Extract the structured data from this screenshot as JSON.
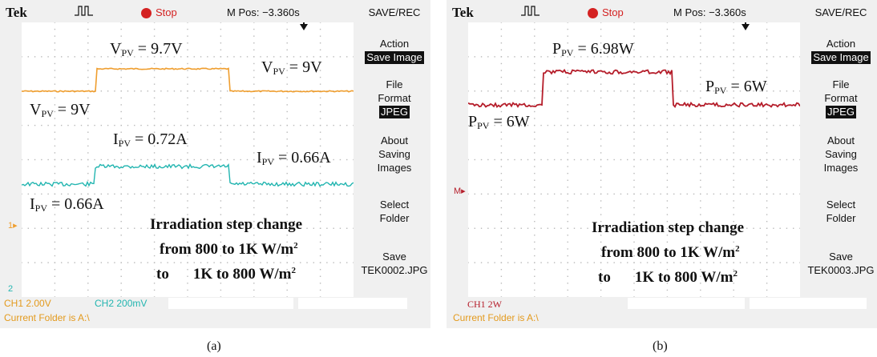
{
  "captions": {
    "a": "(a)",
    "b": "(b)"
  },
  "colors": {
    "v_trace": "#ef9e2f",
    "i_trace": "#22b5b0",
    "p_trace": "#b51d2a",
    "stop": "#d42222",
    "status": "#e39a1d"
  },
  "scope_a": {
    "brand": "Tek",
    "stop": "Stop",
    "mpos": "M Pos: −3.360s",
    "menu_title": "SAVE/REC",
    "menu": {
      "action_label": "Action",
      "action_value": "Save Image",
      "file_format_1": "File",
      "file_format_2": "Format",
      "file_format_value": "JPEG",
      "about_1": "About",
      "about_2": "Saving",
      "about_3": "Images",
      "select_1": "Select",
      "select_2": "Folder",
      "save_1": "Save",
      "save_2": "TEK0002.JPG"
    },
    "annotations": {
      "v_high": "9.7V",
      "v_right": "9V",
      "v_left": "9V",
      "i_high": "0.72A",
      "i_right": "0.66A",
      "i_left": "0.66A",
      "v_sym": "V",
      "i_sym": "I",
      "sub": "PV",
      "eq": " = "
    },
    "step_text": {
      "line1": "Irradiation step change",
      "line2": "from 800 to 1K W/m",
      "line3_to": "to",
      "line3": "1K to 800 W/m",
      "sup": "2"
    },
    "markers": {
      "ch1": "1",
      "ch2": "2"
    },
    "status": {
      "ch1": "CH1  2.00V",
      "ch2": "CH2  200mV",
      "folder": "Current Folder is A:\\"
    }
  },
  "scope_b": {
    "brand": "Tek",
    "stop": "Stop",
    "mpos": "M Pos: −3.360s",
    "menu_title": "SAVE/REC",
    "menu": {
      "action_label": "Action",
      "action_value": "Save Image",
      "file_format_1": "File",
      "file_format_2": "Format",
      "file_format_value": "JPEG",
      "about_1": "About",
      "about_2": "Saving",
      "about_3": "Images",
      "select_1": "Select",
      "select_2": "Folder",
      "save_1": "Save",
      "save_2": "TEK0003.JPG"
    },
    "annotations": {
      "p_high": "6.98W",
      "p_right": "6W",
      "p_left": "6W",
      "p_sym": "P",
      "sub": "PV",
      "eq": " = "
    },
    "step_text": {
      "line1": "Irradiation step change",
      "line2": "from 800 to 1K W/m",
      "line3_to": "to",
      "line3": "1K to 800 W/m",
      "sup": "2"
    },
    "markers": {
      "m": "M"
    },
    "status": {
      "ch1": "CH1  2W",
      "folder": "Current Folder is A:\\"
    }
  }
}
